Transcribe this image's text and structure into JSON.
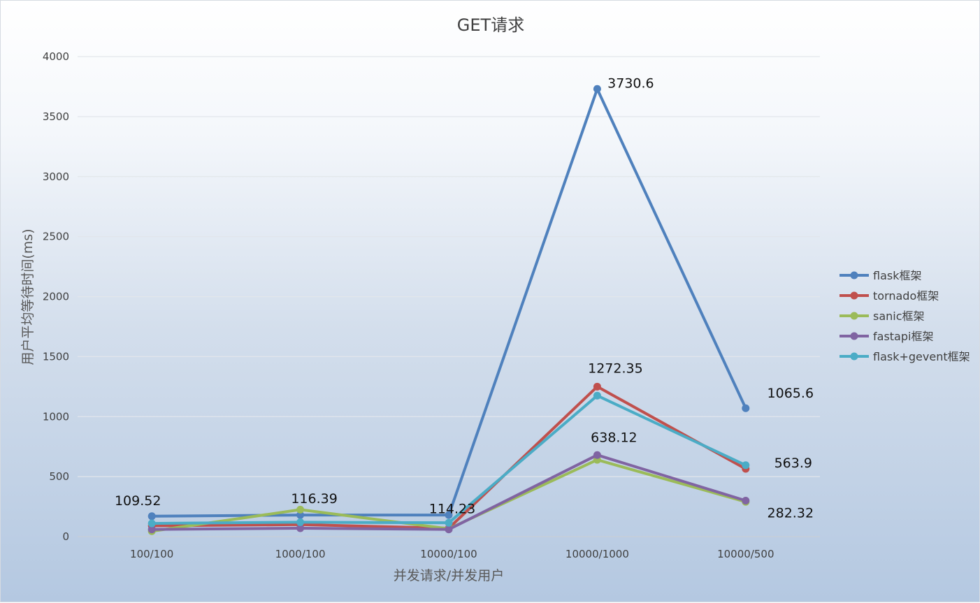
{
  "chart_data": {
    "type": "line",
    "title": "GET请求",
    "xlabel": "并发请求/并发用户",
    "ylabel": "用户平均等待时间(ms)",
    "ylim": [
      0,
      4000
    ],
    "yticks": [
      "0",
      "500",
      "1000",
      "1500",
      "2000",
      "2500",
      "3000",
      "3500",
      "4000"
    ],
    "categories": [
      "100/100",
      "1000/100",
      "10000/100",
      "10000/1000",
      "10000/500"
    ],
    "grid": true,
    "legend": "right",
    "series": [
      {
        "name": "flask框架",
        "color": "#4f81bd",
        "values": [
          170,
          180,
          180,
          3730.6,
          1070
        ]
      },
      {
        "name": "tornado框架",
        "color": "#c0504d",
        "values": [
          90,
          100,
          70,
          1250,
          565
        ]
      },
      {
        "name": "sanic框架",
        "color": "#9bbb59",
        "values": [
          45,
          225,
          65,
          640,
          290
        ]
      },
      {
        "name": "fastapi框架",
        "color": "#8064a2",
        "values": [
          60,
          70,
          60,
          680,
          300
        ]
      },
      {
        "name": "flask+gevent框架",
        "color": "#4bacc6",
        "values": [
          110,
          120,
          115,
          1175,
          595
        ]
      }
    ],
    "data_labels": [
      {
        "text": "109.52",
        "category": 0,
        "value": 109.52
      },
      {
        "text": "116.39",
        "category": 1,
        "value": 116.39
      },
      {
        "text": "114.23",
        "category": 2,
        "value": 114.23
      },
      {
        "text": "3730.6",
        "category": 3,
        "value": 3730.6
      },
      {
        "text": "1272.35",
        "category": 3,
        "value": 1272.35
      },
      {
        "text": "638.12",
        "category": 3,
        "value": 638.12
      },
      {
        "text": "1065.6",
        "category": 4,
        "value": 1065.6
      },
      {
        "text": "563.9",
        "category": 4,
        "value": 563.9
      },
      {
        "text": "282.32",
        "category": 4,
        "value": 282.32
      }
    ]
  }
}
